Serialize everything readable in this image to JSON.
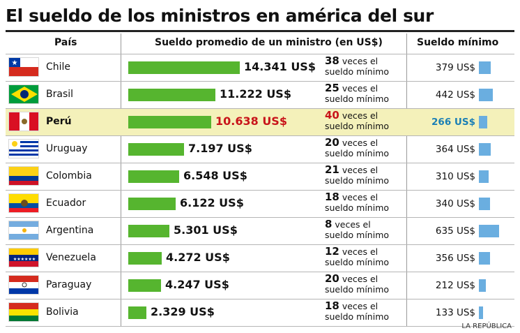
{
  "title": "El sueldo de los ministros en américa del sur",
  "headers": {
    "country": "País",
    "salary": "Sueldo promedio de un ministro (en US$)",
    "minimum": "Sueldo mínimo"
  },
  "source": "LA REPÚBLICA",
  "colors": {
    "salary_bar": "#56b52f",
    "min_bar": "#6aaee0",
    "highlight": "#f4f1ba",
    "highlight_text": "#c8141a",
    "highlight_min": "#1b7fb5"
  },
  "rows": [
    {
      "country": "Chile",
      "salary": "14.341 US$",
      "times": "38",
      "times_text": "veces el sueldo mínimo",
      "minimum": "379 US$",
      "flag": "flag-chile-icon"
    },
    {
      "country": "Brasil",
      "salary": "11.222 US$",
      "times": "25",
      "times_text": "veces el sueldo mínimo",
      "minimum": "442 US$",
      "flag": "flag-brasil-icon"
    },
    {
      "country": "Perú",
      "salary": "10.638 US$",
      "times": "40",
      "times_text": "veces el sueldo mínimo",
      "minimum": "266 US$",
      "flag": "flag-peru-icon"
    },
    {
      "country": "Uruguay",
      "salary": "7.197 US$",
      "times": "20",
      "times_text": "veces el sueldo mínimo",
      "minimum": "364 US$",
      "flag": "flag-uruguay-icon"
    },
    {
      "country": "Colombia",
      "salary": "6.548 US$",
      "times": "21",
      "times_text": "veces el sueldo mínimo",
      "minimum": "310 US$",
      "flag": "flag-colombia-icon"
    },
    {
      "country": "Ecuador",
      "salary": "6.122 US$",
      "times": "18",
      "times_text": "veces el sueldo mínimo",
      "minimum": "340 US$",
      "flag": "flag-ecuador-icon"
    },
    {
      "country": "Argentina",
      "salary": "5.301 US$",
      "times": "8",
      "times_text": "veces el sueldo mínimo",
      "minimum": "635 US$",
      "flag": "flag-argentina-icon"
    },
    {
      "country": "Venezuela",
      "salary": "4.272 US$",
      "times": "12",
      "times_text": "veces el sueldo mínimo",
      "minimum": "356 US$",
      "flag": "flag-venezuela-icon"
    },
    {
      "country": "Paraguay",
      "salary": "4.247 US$",
      "times": "20",
      "times_text": "veces el sueldo mínimo",
      "minimum": "212 US$",
      "flag": "flag-paraguay-icon"
    },
    {
      "country": "Bolivia",
      "salary": "2.329 US$",
      "times": "18",
      "times_text": "veces el sueldo mínimo",
      "minimum": "133 US$",
      "flag": "flag-bolivia-icon"
    }
  ],
  "chart_data": {
    "type": "bar",
    "title": "El sueldo de los ministros en américa del sur",
    "categories": [
      "Chile",
      "Brasil",
      "Perú",
      "Uruguay",
      "Colombia",
      "Ecuador",
      "Argentina",
      "Venezuela",
      "Paraguay",
      "Bolivia"
    ],
    "series": [
      {
        "name": "Sueldo promedio de un ministro (en US$)",
        "values": [
          14341,
          11222,
          10638,
          7197,
          6548,
          6122,
          5301,
          4272,
          4247,
          2329
        ]
      },
      {
        "name": "Sueldo mínimo",
        "values": [
          379,
          442,
          266,
          364,
          310,
          340,
          635,
          356,
          212,
          133
        ]
      },
      {
        "name": "veces el sueldo mínimo",
        "values": [
          38,
          25,
          40,
          20,
          21,
          18,
          8,
          12,
          20,
          18
        ]
      }
    ],
    "highlight": "Perú"
  }
}
